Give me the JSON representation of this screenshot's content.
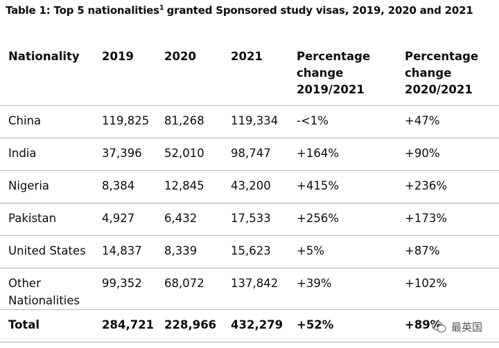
{
  "title": {
    "text_before": "Table 1: Top 5 nationalities",
    "footnote_ref": "1",
    "text_after": "granted Sponsored study visas, 2019, 2020 and 2021"
  },
  "table": {
    "header": [
      "Nationality",
      "2019",
      "2020",
      "2021",
      "Percentage change 2019/2021",
      "Percentage change 2020/2021"
    ],
    "rows": [
      [
        "China",
        "119,825",
        "81,268",
        "119,334",
        "-<1%",
        "+47%"
      ],
      [
        "India",
        "37,396",
        "52,010",
        "98,747",
        "+164%",
        "+90%"
      ],
      [
        "Nigeria",
        "8,384",
        "12,845",
        "43,200",
        "+415%",
        "+236%"
      ],
      [
        "Pakistan",
        "4,927",
        "6,432",
        "17,533",
        "+256%",
        "+173%"
      ],
      [
        "United States",
        "14,837",
        "8,339",
        "15,623",
        "+5%",
        "+87%"
      ],
      [
        "Other Nationalities",
        "99,352",
        "68,072",
        "137,842",
        "+39%",
        "+102%"
      ]
    ],
    "total": [
      "Total",
      "284,721",
      "228,966",
      "432,279",
      "+52%",
      "+89%"
    ]
  },
  "watermark": "最英国"
}
